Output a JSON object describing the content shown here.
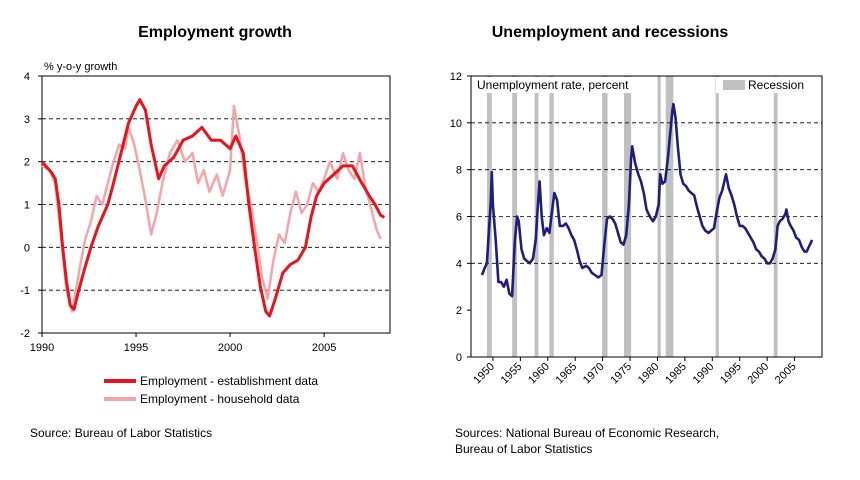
{
  "left_source": "Source: Bureau of Labor Statistics",
  "right_source_line1": "Sources: National Bureau of Economic Research,",
  "right_source_line2": "Bureau of Labor Statistics",
  "chart_data": [
    {
      "type": "line",
      "title": "Employment growth",
      "ylabel": "% y-o-y growth",
      "xlim": [
        1990,
        2008.5
      ],
      "ylim": [
        -2,
        4
      ],
      "yticks": [
        -2,
        -1,
        0,
        1,
        2,
        3,
        4
      ],
      "xticks": [
        1990,
        1995,
        2000,
        2005
      ],
      "gridlines": [
        -1,
        1,
        2,
        3
      ],
      "series": [
        {
          "name": "Employment - establishment data",
          "color": "#e8141c",
          "points": [
            [
              1990,
              2.0
            ],
            [
              1990.5,
              1.75
            ],
            [
              1990.7,
              1.6
            ],
            [
              1990.9,
              1.0
            ],
            [
              1991.1,
              0.0
            ],
            [
              1991.3,
              -0.8
            ],
            [
              1991.5,
              -1.35
            ],
            [
              1991.7,
              -1.45
            ],
            [
              1991.9,
              -1.1
            ],
            [
              1992.2,
              -0.6
            ],
            [
              1992.6,
              0.0
            ],
            [
              1993.0,
              0.5
            ],
            [
              1993.5,
              1.0
            ],
            [
              1993.8,
              1.5
            ],
            [
              1994.2,
              2.2
            ],
            [
              1994.6,
              2.9
            ],
            [
              1995.0,
              3.3
            ],
            [
              1995.2,
              3.45
            ],
            [
              1995.5,
              3.2
            ],
            [
              1995.8,
              2.4
            ],
            [
              1996.0,
              2.0
            ],
            [
              1996.2,
              1.6
            ],
            [
              1996.5,
              1.9
            ],
            [
              1997.0,
              2.1
            ],
            [
              1997.5,
              2.5
            ],
            [
              1998.0,
              2.6
            ],
            [
              1998.5,
              2.8
            ],
            [
              1999.0,
              2.5
            ],
            [
              1999.5,
              2.5
            ],
            [
              2000.0,
              2.3
            ],
            [
              2000.3,
              2.6
            ],
            [
              2000.7,
              2.2
            ],
            [
              2001.0,
              1.0
            ],
            [
              2001.3,
              0.0
            ],
            [
              2001.6,
              -0.9
            ],
            [
              2001.9,
              -1.5
            ],
            [
              2002.1,
              -1.6
            ],
            [
              2002.4,
              -1.2
            ],
            [
              2002.8,
              -0.6
            ],
            [
              2003.2,
              -0.4
            ],
            [
              2003.6,
              -0.3
            ],
            [
              2004.0,
              0.0
            ],
            [
              2004.3,
              0.7
            ],
            [
              2004.6,
              1.2
            ],
            [
              2005.0,
              1.5
            ],
            [
              2005.5,
              1.7
            ],
            [
              2006.0,
              1.9
            ],
            [
              2006.5,
              1.9
            ],
            [
              2007.0,
              1.5
            ],
            [
              2007.4,
              1.2
            ],
            [
              2007.7,
              1.0
            ],
            [
              2008.0,
              0.75
            ],
            [
              2008.2,
              0.7
            ]
          ]
        },
        {
          "name": "Employment - household data",
          "color": "#f5a5a8",
          "points": [
            [
              1990,
              1.9
            ],
            [
              1990.4,
              1.8
            ],
            [
              1990.7,
              1.5
            ],
            [
              1991.0,
              0.3
            ],
            [
              1991.3,
              -1.0
            ],
            [
              1991.6,
              -1.5
            ],
            [
              1991.8,
              -1.0
            ],
            [
              1992.0,
              -0.5
            ],
            [
              1992.3,
              0.2
            ],
            [
              1992.6,
              0.6
            ],
            [
              1992.9,
              1.2
            ],
            [
              1993.2,
              1.0
            ],
            [
              1993.5,
              1.5
            ],
            [
              1993.8,
              2.0
            ],
            [
              1994.1,
              2.4
            ],
            [
              1994.4,
              2.3
            ],
            [
              1994.6,
              2.8
            ],
            [
              1994.9,
              2.4
            ],
            [
              1995.2,
              1.8
            ],
            [
              1995.5,
              1.1
            ],
            [
              1995.8,
              0.3
            ],
            [
              1996.1,
              0.8
            ],
            [
              1996.4,
              1.5
            ],
            [
              1996.8,
              2.2
            ],
            [
              1997.2,
              2.5
            ],
            [
              1997.6,
              2.0
            ],
            [
              1998.0,
              2.2
            ],
            [
              1998.3,
              1.5
            ],
            [
              1998.6,
              1.8
            ],
            [
              1998.9,
              1.3
            ],
            [
              1999.3,
              1.7
            ],
            [
              1999.6,
              1.2
            ],
            [
              2000.0,
              1.8
            ],
            [
              2000.2,
              3.3
            ],
            [
              2000.5,
              2.6
            ],
            [
              2000.8,
              1.6
            ],
            [
              2001.1,
              1.0
            ],
            [
              2001.4,
              0.2
            ],
            [
              2001.7,
              -0.7
            ],
            [
              2002.0,
              -1.2
            ],
            [
              2002.3,
              -0.3
            ],
            [
              2002.6,
              0.3
            ],
            [
              2002.9,
              0.1
            ],
            [
              2003.2,
              0.8
            ],
            [
              2003.5,
              1.3
            ],
            [
              2003.8,
              0.8
            ],
            [
              2004.1,
              1.0
            ],
            [
              2004.4,
              1.5
            ],
            [
              2004.7,
              1.3
            ],
            [
              2005.0,
              1.6
            ],
            [
              2005.3,
              2.0
            ],
            [
              2005.7,
              1.6
            ],
            [
              2006.0,
              2.2
            ],
            [
              2006.3,
              1.8
            ],
            [
              2006.6,
              1.6
            ],
            [
              2006.9,
              2.2
            ],
            [
              2007.2,
              1.4
            ],
            [
              2007.5,
              0.9
            ],
            [
              2007.8,
              0.4
            ],
            [
              2008.0,
              0.2
            ]
          ]
        }
      ]
    },
    {
      "type": "line",
      "title": "Unemployment and recessions",
      "ylabel": "Unemployment rate, percent",
      "legend_label": "Recession",
      "xlim": [
        1946,
        2010
      ],
      "ylim": [
        0,
        12
      ],
      "yticks": [
        0,
        2,
        4,
        6,
        8,
        10,
        12
      ],
      "xticks": [
        1950,
        1955,
        1960,
        1965,
        1970,
        1975,
        1980,
        1985,
        1990,
        1995,
        2000,
        2005
      ],
      "gridlines": [
        4,
        6,
        8,
        10
      ],
      "recessions": [
        [
          1948.9,
          1949.8
        ],
        [
          1953.5,
          1954.4
        ],
        [
          1957.6,
          1958.3
        ],
        [
          1960.3,
          1961.1
        ],
        [
          1969.9,
          1970.9
        ],
        [
          1973.9,
          1975.2
        ],
        [
          1980.0,
          1980.6
        ],
        [
          1981.5,
          1982.9
        ],
        [
          1990.6,
          1991.2
        ],
        [
          2001.2,
          2001.9
        ]
      ],
      "series": [
        {
          "name": "Unemployment rate",
          "color": "#1f1f7a",
          "points": [
            [
              1948,
              3.5
            ],
            [
              1948.5,
              3.8
            ],
            [
              1948.9,
              4.0
            ],
            [
              1949.3,
              5.5
            ],
            [
              1949.6,
              6.6
            ],
            [
              1949.8,
              7.9
            ],
            [
              1950.0,
              6.5
            ],
            [
              1950.5,
              5.0
            ],
            [
              1951.0,
              3.2
            ],
            [
              1951.5,
              3.2
            ],
            [
              1952.0,
              3.0
            ],
            [
              1952.5,
              3.3
            ],
            [
              1953.0,
              2.7
            ],
            [
              1953.5,
              2.6
            ],
            [
              1954.0,
              5.0
            ],
            [
              1954.4,
              6.0
            ],
            [
              1954.7,
              5.8
            ],
            [
              1955.2,
              4.6
            ],
            [
              1955.7,
              4.2
            ],
            [
              1956.2,
              4.1
            ],
            [
              1956.7,
              4.0
            ],
            [
              1957.3,
              4.2
            ],
            [
              1957.8,
              5.0
            ],
            [
              1958.2,
              6.5
            ],
            [
              1958.5,
              7.5
            ],
            [
              1958.9,
              6.0
            ],
            [
              1959.3,
              5.2
            ],
            [
              1959.8,
              5.5
            ],
            [
              1960.3,
              5.3
            ],
            [
              1960.8,
              6.3
            ],
            [
              1961.2,
              7.0
            ],
            [
              1961.7,
              6.7
            ],
            [
              1962.2,
              5.6
            ],
            [
              1962.8,
              5.6
            ],
            [
              1963.3,
              5.7
            ],
            [
              1963.8,
              5.5
            ],
            [
              1964.3,
              5.2
            ],
            [
              1964.8,
              5.0
            ],
            [
              1965.3,
              4.6
            ],
            [
              1965.8,
              4.1
            ],
            [
              1966.3,
              3.8
            ],
            [
              1967.0,
              3.9
            ],
            [
              1967.5,
              3.8
            ],
            [
              1968.0,
              3.6
            ],
            [
              1968.6,
              3.5
            ],
            [
              1969.2,
              3.4
            ],
            [
              1969.8,
              3.5
            ],
            [
              1970.3,
              4.8
            ],
            [
              1970.8,
              5.9
            ],
            [
              1971.3,
              6.0
            ],
            [
              1971.8,
              5.9
            ],
            [
              1972.3,
              5.7
            ],
            [
              1972.8,
              5.3
            ],
            [
              1973.3,
              4.9
            ],
            [
              1973.8,
              4.8
            ],
            [
              1974.3,
              5.2
            ],
            [
              1974.8,
              6.5
            ],
            [
              1975.2,
              8.5
            ],
            [
              1975.4,
              9.0
            ],
            [
              1975.9,
              8.3
            ],
            [
              1976.5,
              7.8
            ],
            [
              1977.0,
              7.5
            ],
            [
              1977.5,
              7.0
            ],
            [
              1978.0,
              6.3
            ],
            [
              1978.6,
              6.0
            ],
            [
              1979.2,
              5.8
            ],
            [
              1979.7,
              6.0
            ],
            [
              1980.2,
              6.5
            ],
            [
              1980.5,
              7.8
            ],
            [
              1980.9,
              7.4
            ],
            [
              1981.4,
              7.5
            ],
            [
              1981.9,
              8.5
            ],
            [
              1982.3,
              9.5
            ],
            [
              1982.7,
              10.5
            ],
            [
              1982.9,
              10.8
            ],
            [
              1983.3,
              10.2
            ],
            [
              1983.7,
              9.0
            ],
            [
              1984.2,
              7.8
            ],
            [
              1984.7,
              7.4
            ],
            [
              1985.2,
              7.3
            ],
            [
              1985.7,
              7.1
            ],
            [
              1986.2,
              7.0
            ],
            [
              1986.7,
              6.9
            ],
            [
              1987.2,
              6.4
            ],
            [
              1987.7,
              6.0
            ],
            [
              1988.2,
              5.6
            ],
            [
              1988.7,
              5.4
            ],
            [
              1989.3,
              5.3
            ],
            [
              1989.8,
              5.4
            ],
            [
              1990.3,
              5.5
            ],
            [
              1990.8,
              6.2
            ],
            [
              1991.3,
              6.8
            ],
            [
              1991.8,
              7.1
            ],
            [
              1992.3,
              7.6
            ],
            [
              1992.5,
              7.8
            ],
            [
              1993.0,
              7.2
            ],
            [
              1993.5,
              6.9
            ],
            [
              1994.0,
              6.5
            ],
            [
              1994.5,
              6.0
            ],
            [
              1995.0,
              5.6
            ],
            [
              1995.5,
              5.6
            ],
            [
              1996.0,
              5.5
            ],
            [
              1996.5,
              5.3
            ],
            [
              1997.0,
              5.1
            ],
            [
              1997.5,
              4.9
            ],
            [
              1998.0,
              4.6
            ],
            [
              1998.5,
              4.5
            ],
            [
              1999.0,
              4.3
            ],
            [
              1999.5,
              4.2
            ],
            [
              2000.0,
              4.0
            ],
            [
              2000.5,
              4.0
            ],
            [
              2001.0,
              4.2
            ],
            [
              2001.5,
              4.6
            ],
            [
              2001.9,
              5.6
            ],
            [
              2002.3,
              5.8
            ],
            [
              2002.8,
              5.9
            ],
            [
              2003.3,
              6.1
            ],
            [
              2003.5,
              6.3
            ],
            [
              2003.9,
              5.8
            ],
            [
              2004.3,
              5.6
            ],
            [
              2004.8,
              5.4
            ],
            [
              2005.3,
              5.1
            ],
            [
              2005.8,
              5.0
            ],
            [
              2006.3,
              4.7
            ],
            [
              2006.8,
              4.5
            ],
            [
              2007.2,
              4.5
            ],
            [
              2007.6,
              4.7
            ],
            [
              2008.0,
              4.9
            ],
            [
              2008.2,
              5.0
            ]
          ]
        }
      ]
    }
  ]
}
